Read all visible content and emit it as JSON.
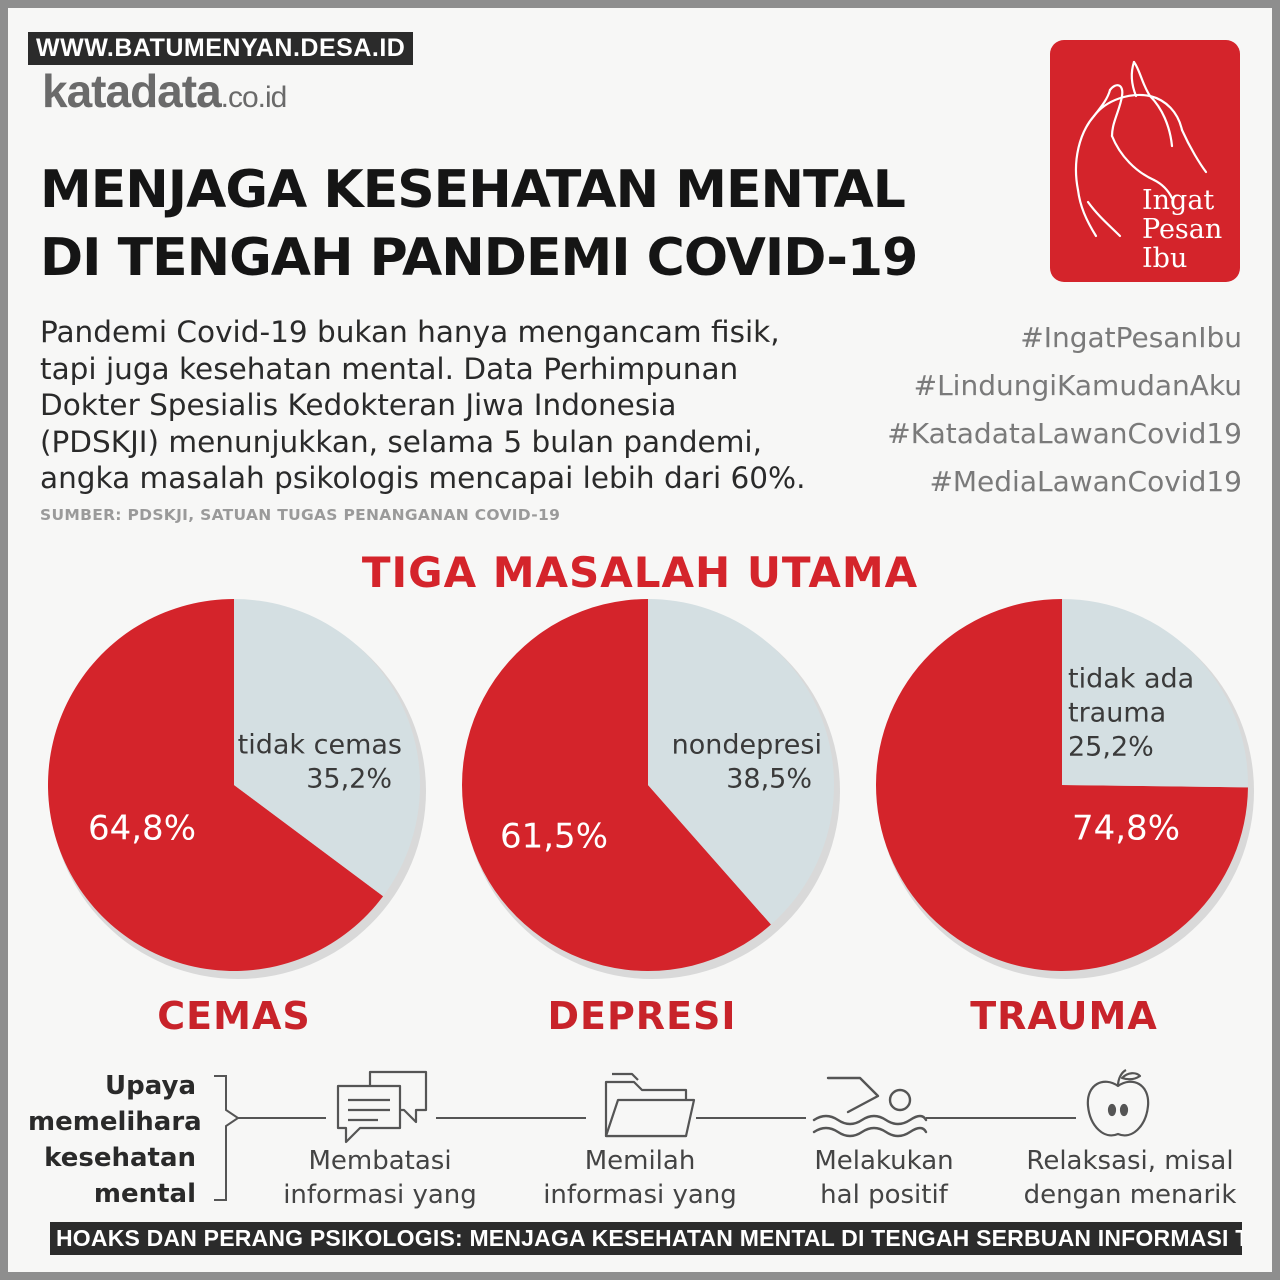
{
  "watermark": "WWW.BATUMENYAN.DESA.ID",
  "logo": {
    "name": "katadata",
    "suffix": ".co.id"
  },
  "title_lines": [
    "MENJAGA KESEHATAN MENTAL",
    "DI TENGAH PANDEMI COVID-19"
  ],
  "badge": {
    "lines": [
      "Ingat",
      "Pesan",
      "Ibu"
    ],
    "icon": "hands-icon",
    "color": "#d4242b"
  },
  "intro_lines": [
    "Pandemi Covid-19 bukan hanya mengancam fisik,",
    "tapi juga kesehatan mental. Data Perhimpunan",
    "Dokter Spesialis Kedokteran Jiwa Indonesia",
    "(PDSKJI) menunjukkan, selama 5 bulan pandemi,",
    "angka masalah psikologis mencapai lebih dari 60%."
  ],
  "source": "SUMBER: PDSKJI, SATUAN TUGAS PENANGANAN COVID-19",
  "hashtags": [
    "#IngatPesanIbu",
    "#LindungiKamudanAku",
    "#KatadataLawanCovid19",
    "#MediaLawanCovid19"
  ],
  "section_title": "TIGA MASALAH UTAMA",
  "chart_data": [
    {
      "type": "pie",
      "title": "CEMAS",
      "slices": [
        {
          "label": "",
          "value": 64.8,
          "value_label": "64,8%",
          "color": "#d4242b"
        },
        {
          "label": "tidak cemas",
          "value": 35.2,
          "value_label": "35,2%",
          "color": "#d4dfe2"
        }
      ]
    },
    {
      "type": "pie",
      "title": "DEPRESI",
      "slices": [
        {
          "label": "",
          "value": 61.5,
          "value_label": "61,5%",
          "color": "#d4242b"
        },
        {
          "label": "nondepresi",
          "value": 38.5,
          "value_label": "38,5%",
          "color": "#d4dfe2"
        }
      ]
    },
    {
      "type": "pie",
      "title": "TRAUMA",
      "slices": [
        {
          "label": "",
          "value": 74.8,
          "value_label": "74,8%",
          "color": "#d4242b"
        },
        {
          "label": "tidak ada trauma",
          "value": 25.2,
          "value_label": "25,2%",
          "color": "#d4dfe2"
        }
      ]
    }
  ],
  "upaya": {
    "heading_lines": [
      "Upaya",
      "memelihara",
      "kesehatan",
      "mental"
    ],
    "items": [
      {
        "icon": "chat-bubbles-icon",
        "lines": [
          "Membatasi",
          "informasi yang"
        ]
      },
      {
        "icon": "folder-icon",
        "lines": [
          "Memilah",
          "informasi yang"
        ]
      },
      {
        "icon": "swimmer-icon",
        "lines": [
          "Melakukan",
          "hal positif"
        ]
      },
      {
        "icon": "apple-icon",
        "lines": [
          "Relaksasi, misal",
          "dengan menarik"
        ]
      }
    ]
  },
  "caption": "HOAKS DAN PERANG PSIKOLOGIS: MENJAGA KESEHATAN MENTAL DI TENGAH SERBUAN INFORMASI TIDAK BENAR"
}
